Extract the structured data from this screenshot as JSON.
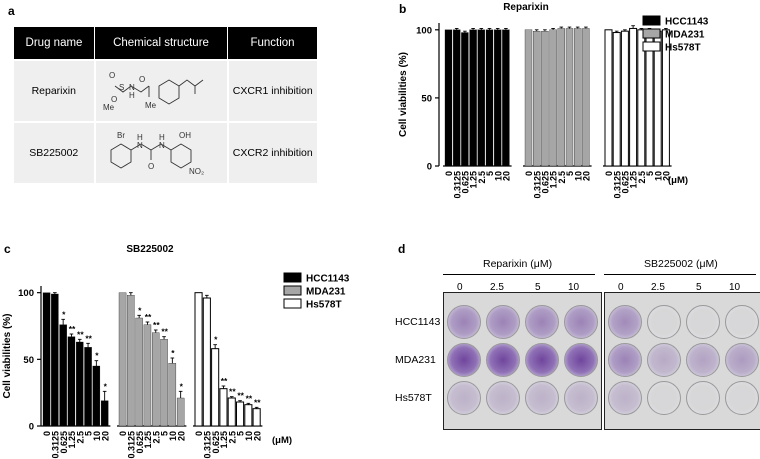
{
  "panels": {
    "a": "a",
    "b": "b",
    "c": "c",
    "d": "d"
  },
  "table": {
    "headers": [
      "Drug name",
      "Chemical structure",
      "Function"
    ],
    "rows": [
      {
        "drug": "Reparixin",
        "function": "CXCR1 inhibition",
        "struct_labels": [
          "O",
          "O",
          "S",
          "H",
          "N",
          "O",
          "Me"
        ]
      },
      {
        "drug": "SB225002",
        "function": "CXCR2 inhibition",
        "struct_labels": [
          "Br",
          "OH",
          "H",
          "N",
          "H",
          "N",
          "O",
          "NO₂"
        ]
      }
    ]
  },
  "units": "(μM)",
  "chart_data": [
    {
      "type": "bar",
      "title": "Reparixin",
      "ylabel": "Cell viabilities (%)",
      "ylim": [
        0,
        105
      ],
      "yticks": [
        0,
        50,
        100
      ],
      "categories": [
        "0",
        "0.3125",
        "0.625",
        "1.25",
        "2.5",
        "5",
        "10",
        "20"
      ],
      "legend_position": "right",
      "series": [
        {
          "name": "HCC1143",
          "fill": "#000000",
          "values": [
            100,
            100,
            98,
            100,
            100,
            100,
            100,
            100
          ],
          "errors": [
            0,
            1,
            1,
            1,
            1,
            1,
            1,
            1
          ],
          "sig": []
        },
        {
          "name": "MDA231",
          "fill": "#a6a6a6",
          "values": [
            100,
            99,
            99,
            100,
            101,
            101,
            101,
            101
          ],
          "errors": [
            0,
            1,
            1,
            1,
            1,
            1,
            1,
            1
          ],
          "sig": []
        },
        {
          "name": "Hs578T",
          "fill": "#ffffff",
          "values": [
            100,
            98,
            99,
            101,
            100,
            99,
            99,
            100
          ],
          "errors": [
            0,
            1,
            1,
            2,
            1,
            2,
            1,
            1
          ],
          "sig": []
        }
      ]
    },
    {
      "type": "bar",
      "title": "SB225002",
      "ylabel": "Cell viabilities (%)",
      "ylim": [
        0,
        105
      ],
      "yticks": [
        0,
        50,
        100
      ],
      "categories": [
        "0",
        "0.3125",
        "0.625",
        "1.25",
        "2.5",
        "5",
        "10",
        "20"
      ],
      "legend_position": "right",
      "series": [
        {
          "name": "HCC1143",
          "fill": "#000000",
          "values": [
            100,
            99,
            76,
            67,
            63,
            59,
            45,
            19
          ],
          "errors": [
            0,
            1,
            4,
            2,
            2,
            3,
            4,
            7
          ],
          "sig": [
            "",
            "",
            "*",
            "**",
            "**",
            "**",
            "*",
            "*"
          ]
        },
        {
          "name": "MDA231",
          "fill": "#a6a6a6",
          "values": [
            100,
            98,
            81,
            76,
            70,
            65,
            47,
            21
          ],
          "errors": [
            0,
            2,
            2,
            2,
            2,
            2,
            4,
            5
          ],
          "sig": [
            "",
            "",
            "*",
            "**",
            "**",
            "**",
            "*",
            "*"
          ]
        },
        {
          "name": "Hs578T",
          "fill": "#ffffff",
          "values": [
            100,
            96,
            58,
            28,
            21,
            18,
            16,
            13
          ],
          "errors": [
            0,
            2,
            3,
            2,
            1,
            1,
            1,
            1
          ],
          "sig": [
            "",
            "",
            "*",
            "**",
            "**",
            "**",
            "**",
            "**"
          ]
        }
      ]
    }
  ],
  "plates": {
    "groups": [
      {
        "title": "Reparixin (μM)",
        "doses": [
          "0",
          "2.5",
          "5",
          "10"
        ]
      },
      {
        "title": "SB225002 (μM)",
        "doses": [
          "0",
          "2.5",
          "5",
          "10"
        ]
      }
    ],
    "rows": [
      "HCC1143",
      "MDA231",
      "Hs578T"
    ],
    "stain_density": [
      [
        0.55,
        0.55,
        0.55,
        0.55,
        0.5,
        0.02,
        0.02,
        0.02
      ],
      [
        0.95,
        0.95,
        0.95,
        0.95,
        0.55,
        0.3,
        0.35,
        0.4
      ],
      [
        0.25,
        0.25,
        0.25,
        0.25,
        0.25,
        0.02,
        0.02,
        0.02
      ]
    ],
    "stain_color": "#6a3d9a"
  }
}
